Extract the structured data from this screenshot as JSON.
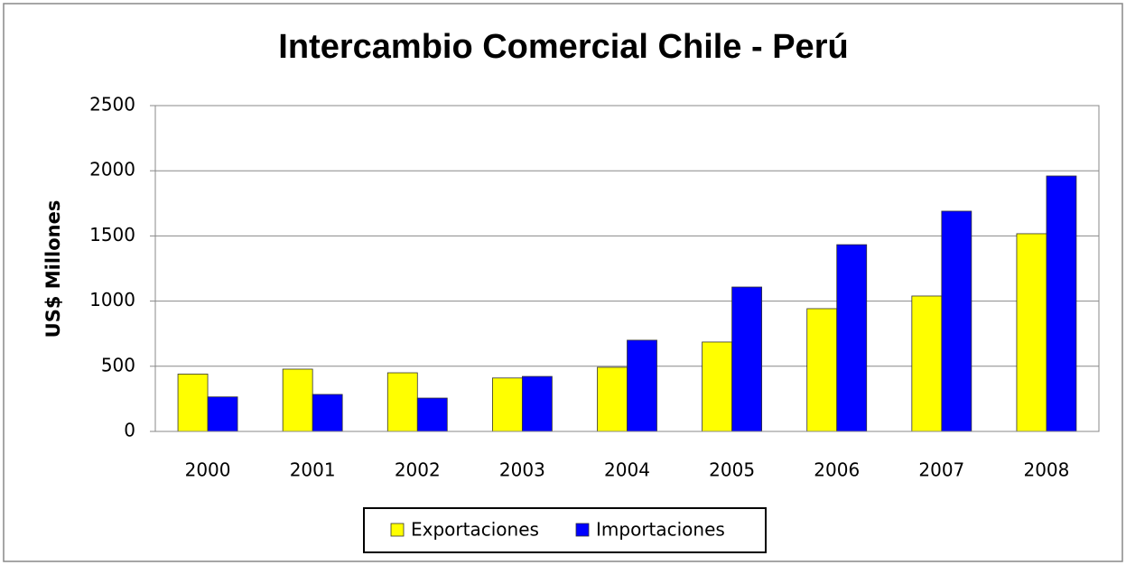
{
  "chart_data": {
    "type": "bar",
    "title": "Intercambio Comercial Chile - Perú",
    "ylabel": "US$ Millones",
    "categories": [
      "2000",
      "2001",
      "2002",
      "2003",
      "2004",
      "2005",
      "2006",
      "2007",
      "2008"
    ],
    "series": [
      {
        "name": "Exportaciones",
        "color": "#ffff00",
        "values": [
          440,
          478,
          450,
          410,
          492,
          686,
          942,
          1039,
          1517
        ]
      },
      {
        "name": "Importaciones",
        "color": "#0000ff",
        "values": [
          265,
          284,
          256,
          422,
          700,
          1108,
          1433,
          1690,
          1960
        ]
      }
    ],
    "ylim": [
      0,
      2500
    ],
    "yticks": [
      0,
      500,
      1000,
      1500,
      2000,
      2500
    ],
    "grid": true,
    "legend": "bottom"
  }
}
